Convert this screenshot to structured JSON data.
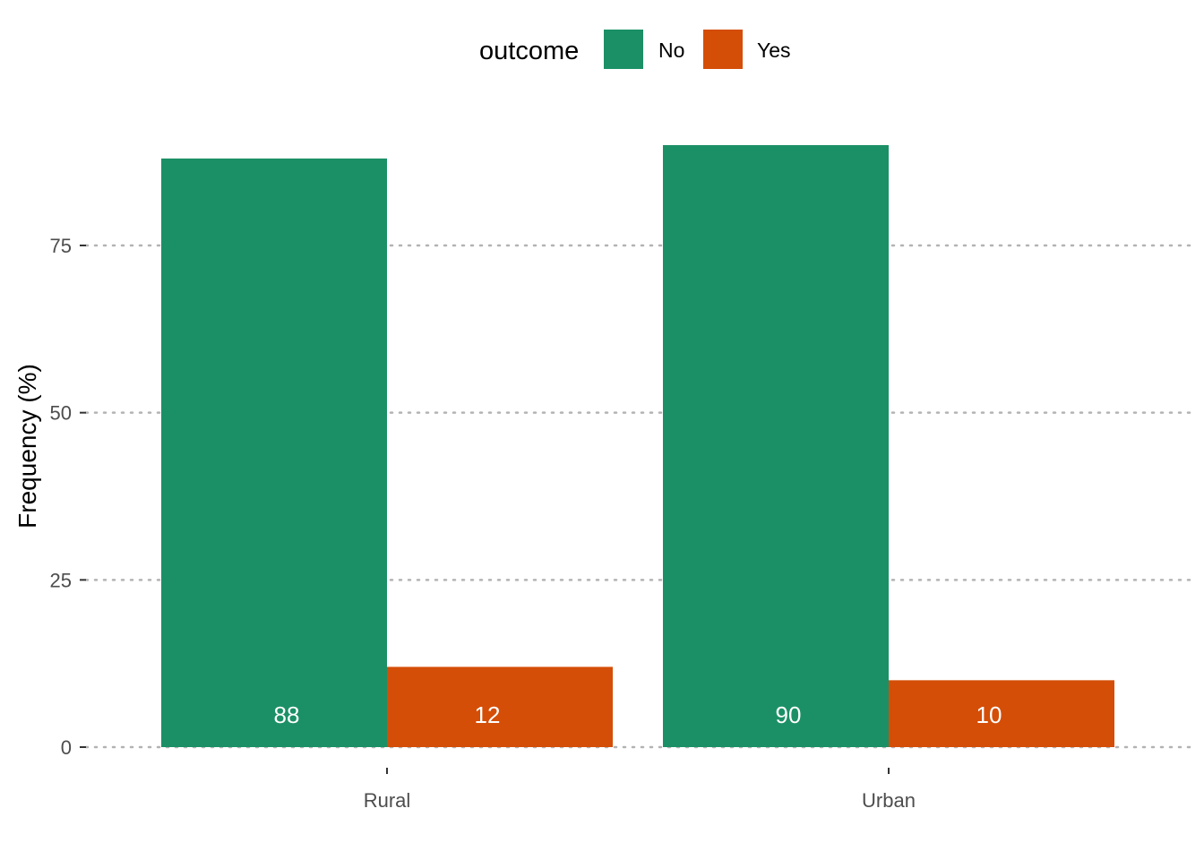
{
  "chart_data": {
    "type": "bar",
    "categories": [
      "Rural",
      "Urban"
    ],
    "series": [
      {
        "name": "No",
        "values": [
          88,
          90
        ],
        "color": "#1b9066"
      },
      {
        "name": "Yes",
        "values": [
          12,
          10
        ],
        "color": "#d44e08"
      }
    ],
    "title": "",
    "xlabel": "",
    "ylabel": "Frequency (%)",
    "ylim": [
      0,
      100
    ],
    "yticks": [
      0,
      25,
      50,
      75
    ],
    "grid": "horizontal dotted",
    "legend": {
      "title": "outcome",
      "position": "top"
    },
    "data_labels": [
      [
        "88",
        "12"
      ],
      [
        "90",
        "10"
      ]
    ]
  }
}
